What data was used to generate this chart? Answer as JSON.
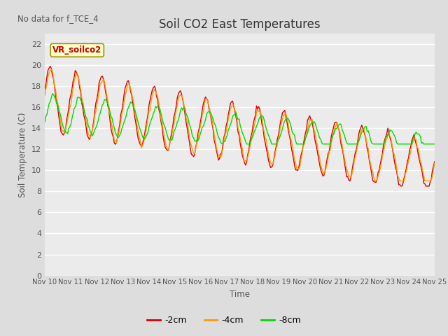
{
  "title": "Soil CO2 East Temperatures",
  "xlabel": "Time",
  "ylabel": "Soil Temperature (C)",
  "no_data_text": "No data for f_TCE_4",
  "legend_label_text": "VR_soilco2",
  "ylim": [
    0,
    23
  ],
  "yticks": [
    0,
    2,
    4,
    6,
    8,
    10,
    12,
    14,
    16,
    18,
    20,
    22
  ],
  "colors": {
    "neg2cm": "#dd0000",
    "neg4cm": "#ff9900",
    "neg8cm": "#00dd00"
  },
  "legend_entries": [
    "-2cm",
    "-4cm",
    "-8cm"
  ],
  "bg_color": "#dddddd",
  "plot_bg": "#ebebeb",
  "grid_color": "white",
  "tick_label_color": "#555555",
  "title_color": "#333333",
  "axis_label_color": "#555555"
}
